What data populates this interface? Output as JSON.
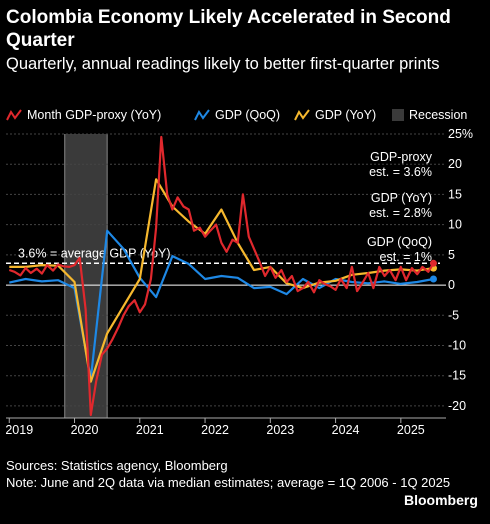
{
  "title": "Colombia Economy Likely Accelerated in Second Quarter",
  "subtitle": "Quarterly, annual readings likely to better first-quarter prints",
  "legend": {
    "month_proxy": "Month GDP-proxy (YoY)",
    "gdp_qoq": "GDP (QoQ)",
    "gdp_yoy": "GDP (YoY)",
    "recession": "Recession"
  },
  "colors": {
    "proxy": "#e0282d",
    "qoq": "#1e88e5",
    "yoy": "#f6b82e",
    "recession": "#3a3a3a",
    "grid": "#444444"
  },
  "annotations": {
    "average": "3.6% = average GDP (YoY)",
    "proxy_est_1": "GDP-proxy",
    "proxy_est_2": "est. = 3.6%",
    "yoy_est_1": "GDP (YoY)",
    "yoy_est_2": "est. = 2.8%",
    "qoq_est_1": "GDP (QoQ)",
    "qoq_est_2": "est. = 1%"
  },
  "footer": {
    "sources": "Sources: Statistics agency, Bloomberg",
    "note": "Note: June and 2Q data via median estimates; average = 1Q 2006 - 1Q 2025",
    "brand": "Bloomberg"
  },
  "chart_data": {
    "type": "line",
    "xlim": [
      2018.95,
      2025.6
    ],
    "ylim": [
      -22,
      25
    ],
    "yticks": [
      25,
      20,
      15,
      10,
      5,
      0,
      -5,
      -10,
      -15,
      -20
    ],
    "ytick_labels": [
      "25%",
      "20",
      "15",
      "10",
      "5",
      "0",
      "-5",
      "-10",
      "-15",
      "-20"
    ],
    "xticks": [
      2019,
      2020,
      2021,
      2022,
      2023,
      2024,
      2025
    ],
    "xtick_labels": [
      "2019",
      "2020",
      "2021",
      "2022",
      "2023",
      "2024",
      "2025"
    ],
    "recession": [
      2019.85,
      2020.5
    ],
    "average": 3.6,
    "series": [
      {
        "key": "proxy",
        "name": "Month GDP-proxy (YoY)",
        "points": [
          [
            2019.0,
            2.5
          ],
          [
            2019.08,
            2.2
          ],
          [
            2019.17,
            1.6
          ],
          [
            2019.25,
            2.8
          ],
          [
            2019.33,
            2.0
          ],
          [
            2019.42,
            2.7
          ],
          [
            2019.5,
            1.9
          ],
          [
            2019.58,
            3.3
          ],
          [
            2019.67,
            2.4
          ],
          [
            2019.75,
            3.4
          ],
          [
            2019.83,
            3.1
          ],
          [
            2019.92,
            3.0
          ],
          [
            2020.0,
            3.3
          ],
          [
            2020.08,
            4.5
          ],
          [
            2020.17,
            -4.0
          ],
          [
            2020.25,
            -21.5
          ],
          [
            2020.33,
            -16.0
          ],
          [
            2020.42,
            -11.5
          ],
          [
            2020.5,
            -10.5
          ],
          [
            2020.58,
            -9.0
          ],
          [
            2020.67,
            -7.0
          ],
          [
            2020.75,
            -5.0
          ],
          [
            2020.83,
            -3.5
          ],
          [
            2020.92,
            -2.5
          ],
          [
            2021.0,
            -4.5
          ],
          [
            2021.08,
            -3.2
          ],
          [
            2021.17,
            1.0
          ],
          [
            2021.25,
            9.5
          ],
          [
            2021.33,
            24.5
          ],
          [
            2021.42,
            15.0
          ],
          [
            2021.5,
            12.5
          ],
          [
            2021.58,
            14.5
          ],
          [
            2021.67,
            13.0
          ],
          [
            2021.75,
            12.5
          ],
          [
            2021.83,
            9.0
          ],
          [
            2021.92,
            9.5
          ],
          [
            2022.0,
            8.0
          ],
          [
            2022.08,
            9.0
          ],
          [
            2022.17,
            10.0
          ],
          [
            2022.25,
            7.0
          ],
          [
            2022.33,
            5.5
          ],
          [
            2022.42,
            7.5
          ],
          [
            2022.5,
            7.0
          ],
          [
            2022.58,
            15.0
          ],
          [
            2022.67,
            8.0
          ],
          [
            2022.75,
            6.0
          ],
          [
            2022.83,
            4.0
          ],
          [
            2022.92,
            1.5
          ],
          [
            2023.0,
            3.0
          ],
          [
            2023.08,
            1.2
          ],
          [
            2023.17,
            2.5
          ],
          [
            2023.25,
            0.5
          ],
          [
            2023.33,
            1.5
          ],
          [
            2023.42,
            -1.0
          ],
          [
            2023.5,
            -0.5
          ],
          [
            2023.58,
            0.5
          ],
          [
            2023.67,
            -1.2
          ],
          [
            2023.75,
            0.8
          ],
          [
            2023.83,
            0.2
          ],
          [
            2023.92,
            -0.2
          ],
          [
            2024.0,
            -0.8
          ],
          [
            2024.08,
            1.0
          ],
          [
            2024.17,
            -0.5
          ],
          [
            2024.25,
            3.0
          ],
          [
            2024.33,
            -1.0
          ],
          [
            2024.42,
            0.5
          ],
          [
            2024.5,
            2.0
          ],
          [
            2024.58,
            -0.5
          ],
          [
            2024.67,
            3.0
          ],
          [
            2024.75,
            1.5
          ],
          [
            2024.83,
            2.5
          ],
          [
            2024.92,
            0.8
          ],
          [
            2025.0,
            3.0
          ],
          [
            2025.08,
            0.8
          ],
          [
            2025.17,
            2.8
          ],
          [
            2025.25,
            1.8
          ],
          [
            2025.33,
            3.0
          ],
          [
            2025.42,
            2.2
          ],
          [
            2025.5,
            3.6
          ]
        ]
      },
      {
        "key": "qoq",
        "name": "GDP (QoQ)",
        "points": [
          [
            2019.0,
            0.4
          ],
          [
            2019.25,
            1.0
          ],
          [
            2019.5,
            0.6
          ],
          [
            2019.75,
            0.8
          ],
          [
            2020.0,
            -0.5
          ],
          [
            2020.25,
            -15.5
          ],
          [
            2020.5,
            9.0
          ],
          [
            2020.75,
            6.0
          ],
          [
            2021.0,
            1.2
          ],
          [
            2021.25,
            -2.0
          ],
          [
            2021.5,
            4.8
          ],
          [
            2021.75,
            3.5
          ],
          [
            2022.0,
            1.0
          ],
          [
            2022.25,
            1.5
          ],
          [
            2022.5,
            1.2
          ],
          [
            2022.75,
            -0.5
          ],
          [
            2023.0,
            -0.3
          ],
          [
            2023.25,
            -1.5
          ],
          [
            2023.5,
            1.0
          ],
          [
            2023.75,
            -0.5
          ],
          [
            2024.0,
            1.0
          ],
          [
            2024.25,
            0.5
          ],
          [
            2024.5,
            0.3
          ],
          [
            2024.75,
            0.6
          ],
          [
            2025.0,
            0.2
          ],
          [
            2025.25,
            0.5
          ],
          [
            2025.5,
            1.0
          ]
        ]
      },
      {
        "key": "yoy",
        "name": "GDP (YoY)",
        "points": [
          [
            2019.0,
            3.0
          ],
          [
            2019.25,
            3.0
          ],
          [
            2019.5,
            3.3
          ],
          [
            2019.75,
            3.2
          ],
          [
            2020.0,
            0.5
          ],
          [
            2020.25,
            -16.0
          ],
          [
            2020.5,
            -8.0
          ],
          [
            2020.75,
            -3.5
          ],
          [
            2021.0,
            1.0
          ],
          [
            2021.25,
            17.5
          ],
          [
            2021.5,
            13.0
          ],
          [
            2021.75,
            10.5
          ],
          [
            2022.0,
            8.5
          ],
          [
            2022.25,
            12.5
          ],
          [
            2022.5,
            7.0
          ],
          [
            2022.75,
            2.5
          ],
          [
            2023.0,
            3.0
          ],
          [
            2023.25,
            0.3
          ],
          [
            2023.5,
            -0.5
          ],
          [
            2023.75,
            0.4
          ],
          [
            2024.0,
            0.7
          ],
          [
            2024.25,
            1.7
          ],
          [
            2024.5,
            2.0
          ],
          [
            2024.75,
            2.4
          ],
          [
            2025.0,
            2.6
          ],
          [
            2025.25,
            2.4
          ],
          [
            2025.5,
            2.8
          ]
        ]
      }
    ]
  }
}
